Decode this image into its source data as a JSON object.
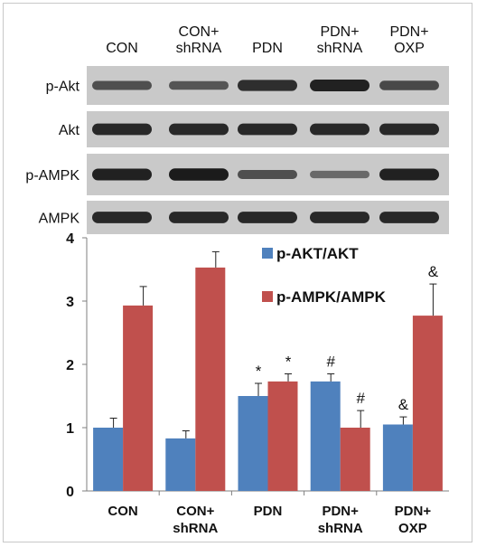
{
  "blot": {
    "lanes": [
      "CON",
      "CON+\nshRNA",
      "PDN",
      "PDN+\nshRNA",
      "PDN+\nOXP"
    ],
    "rows": [
      {
        "label": "p-Akt",
        "intensity": [
          0.55,
          0.5,
          0.8,
          0.9,
          0.6
        ]
      },
      {
        "label": "Akt",
        "intensity": [
          0.85,
          0.85,
          0.85,
          0.85,
          0.85
        ]
      },
      {
        "label": "p-AMPK",
        "intensity": [
          0.9,
          0.95,
          0.55,
          0.35,
          0.9
        ]
      },
      {
        "label": "AMPK",
        "intensity": [
          0.85,
          0.85,
          0.85,
          0.85,
          0.85
        ]
      }
    ]
  },
  "chart_data": {
    "type": "bar",
    "categories": [
      "CON",
      "CON+\nshRNA",
      "PDN",
      "PDN+\nshRNA",
      "PDN+\nOXP"
    ],
    "series": [
      {
        "name": "p-AKT/AKT",
        "color": "#4f81bd",
        "values": [
          1.0,
          0.83,
          1.5,
          1.73,
          1.05
        ],
        "errors": [
          0.15,
          0.12,
          0.2,
          0.12,
          0.12
        ],
        "annotations": [
          "",
          "",
          "*",
          "#",
          "&"
        ]
      },
      {
        "name": "p-AMPK/AMPK",
        "color": "#c0504d",
        "values": [
          2.93,
          3.53,
          1.73,
          1.0,
          2.77
        ],
        "errors": [
          0.3,
          0.25,
          0.12,
          0.27,
          0.5
        ],
        "annotations": [
          "",
          "",
          "*",
          "#",
          "&"
        ]
      }
    ],
    "ylim": [
      0,
      4
    ],
    "yticks": [
      0,
      1,
      2,
      3,
      4
    ],
    "legend_position": "top-right"
  }
}
